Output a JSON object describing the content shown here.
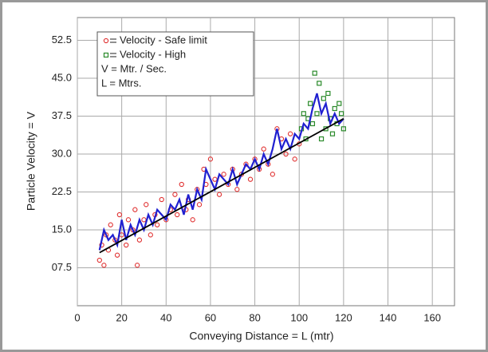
{
  "chart_data": {
    "type": "scatter",
    "xlabel": "Conveying Distance = L (mtr)",
    "ylabel": "Particle Velocity = V",
    "xlim": [
      0,
      170
    ],
    "ylim": [
      0,
      57
    ],
    "xticks": [
      0,
      20,
      40,
      60,
      80,
      100,
      120,
      140,
      160
    ],
    "yticks": [
      {
        "value": 7.5,
        "label": "07.5"
      },
      {
        "value": 15,
        "label": "15.0"
      },
      22.5,
      {
        "value": 30,
        "label": "30.0"
      },
      37.5,
      {
        "value": 45,
        "label": "45.0"
      },
      52.5
    ],
    "grid": true,
    "series": [
      {
        "name": "Velocity - Safe limit",
        "color": "#e03030",
        "marker": "circle",
        "x": [
          10,
          11,
          12,
          13,
          14,
          15,
          17,
          18,
          19,
          20,
          22,
          23,
          25,
          26,
          27,
          28,
          30,
          31,
          33,
          35,
          36,
          38,
          40,
          42,
          44,
          45,
          47,
          49,
          50,
          52,
          54,
          55,
          57,
          58,
          60,
          62,
          64,
          66,
          68,
          70,
          72,
          74,
          76,
          78,
          80,
          82,
          84,
          86,
          88,
          90,
          92,
          94,
          96,
          98,
          100
        ],
        "values": [
          9,
          12,
          8,
          14,
          11,
          16,
          13,
          10,
          18,
          14,
          12,
          17,
          15,
          19,
          8,
          13,
          17,
          20,
          14,
          18,
          16,
          21,
          17,
          19,
          22,
          18,
          24,
          19,
          21,
          17,
          23,
          20,
          27,
          24,
          29,
          25,
          22,
          26,
          24,
          27,
          23,
          26,
          28,
          25,
          29,
          27,
          31,
          28,
          26,
          35,
          33,
          30,
          34,
          29,
          32
        ]
      },
      {
        "name": "Velocity - High",
        "color": "#2a8a2a",
        "marker": "square",
        "x": [
          101,
          102,
          103,
          104,
          105,
          106,
          107,
          108,
          109,
          110,
          111,
          112,
          113,
          114,
          115,
          116,
          117,
          118,
          119,
          120
        ],
        "values": [
          35,
          38,
          33,
          37,
          40,
          36,
          46,
          38,
          44,
          33,
          41,
          35,
          42,
          37,
          34,
          39,
          36,
          40,
          38,
          35
        ]
      }
    ],
    "lines": [
      {
        "color": "#2020d0",
        "x": [
          10,
          12,
          14,
          16,
          18,
          20,
          22,
          24,
          26,
          28,
          30,
          32,
          34,
          36,
          38,
          40,
          42,
          44,
          46,
          48,
          50,
          52,
          54,
          56,
          58,
          60,
          62,
          64,
          66,
          68,
          70,
          72,
          74,
          76,
          78,
          80,
          82,
          84,
          86,
          88,
          90,
          92,
          94,
          96,
          98,
          100,
          102,
          104,
          106,
          108,
          110,
          112,
          114,
          116,
          118,
          120
        ],
        "values": [
          11,
          15,
          13,
          14,
          12,
          17,
          13,
          16,
          14,
          17,
          15,
          18,
          16,
          19,
          18,
          17,
          20,
          19,
          21,
          18,
          22,
          19,
          23,
          21,
          27,
          25,
          23,
          26,
          25,
          24,
          27,
          24,
          26,
          28,
          27,
          29,
          27,
          30,
          28,
          31,
          35,
          31,
          33,
          31,
          34,
          33,
          36,
          35,
          39,
          42,
          38,
          40,
          36,
          38,
          36,
          37
        ]
      },
      {
        "color": "#000000",
        "x": [
          10,
          120
        ],
        "values": [
          10.5,
          37
        ]
      }
    ],
    "annotations": [
      "V = Mtr. / Sec.",
      "L = Mtrs."
    ]
  }
}
